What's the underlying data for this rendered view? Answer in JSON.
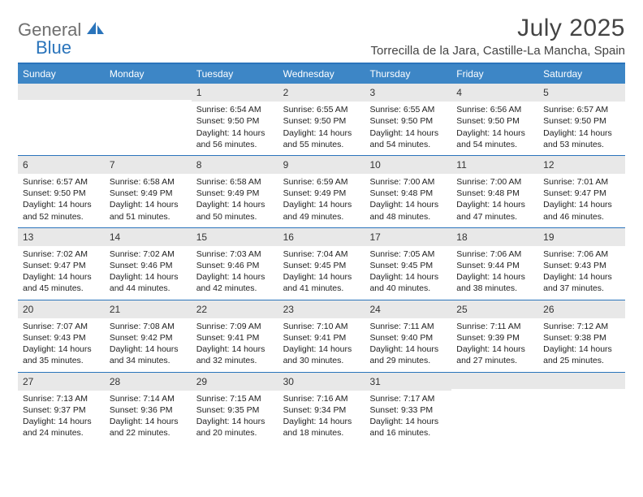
{
  "brand": {
    "part1": "General",
    "part2": "Blue"
  },
  "title": "July 2025",
  "location": "Torrecilla de la Jara, Castille-La Mancha, Spain",
  "colors": {
    "header_bg": "#3d86c6",
    "border": "#2a74bb",
    "daynum_bg": "#e8e8e8",
    "text": "#222222",
    "brand_gray": "#6f6f6f",
    "brand_blue": "#2a74bb"
  },
  "day_names": [
    "Sunday",
    "Monday",
    "Tuesday",
    "Wednesday",
    "Thursday",
    "Friday",
    "Saturday"
  ],
  "weeks": [
    [
      {
        "n": "",
        "sr": "",
        "ss": "",
        "dl": ""
      },
      {
        "n": "",
        "sr": "",
        "ss": "",
        "dl": ""
      },
      {
        "n": "1",
        "sr": "Sunrise: 6:54 AM",
        "ss": "Sunset: 9:50 PM",
        "dl": "Daylight: 14 hours and 56 minutes."
      },
      {
        "n": "2",
        "sr": "Sunrise: 6:55 AM",
        "ss": "Sunset: 9:50 PM",
        "dl": "Daylight: 14 hours and 55 minutes."
      },
      {
        "n": "3",
        "sr": "Sunrise: 6:55 AM",
        "ss": "Sunset: 9:50 PM",
        "dl": "Daylight: 14 hours and 54 minutes."
      },
      {
        "n": "4",
        "sr": "Sunrise: 6:56 AM",
        "ss": "Sunset: 9:50 PM",
        "dl": "Daylight: 14 hours and 54 minutes."
      },
      {
        "n": "5",
        "sr": "Sunrise: 6:57 AM",
        "ss": "Sunset: 9:50 PM",
        "dl": "Daylight: 14 hours and 53 minutes."
      }
    ],
    [
      {
        "n": "6",
        "sr": "Sunrise: 6:57 AM",
        "ss": "Sunset: 9:50 PM",
        "dl": "Daylight: 14 hours and 52 minutes."
      },
      {
        "n": "7",
        "sr": "Sunrise: 6:58 AM",
        "ss": "Sunset: 9:49 PM",
        "dl": "Daylight: 14 hours and 51 minutes."
      },
      {
        "n": "8",
        "sr": "Sunrise: 6:58 AM",
        "ss": "Sunset: 9:49 PM",
        "dl": "Daylight: 14 hours and 50 minutes."
      },
      {
        "n": "9",
        "sr": "Sunrise: 6:59 AM",
        "ss": "Sunset: 9:49 PM",
        "dl": "Daylight: 14 hours and 49 minutes."
      },
      {
        "n": "10",
        "sr": "Sunrise: 7:00 AM",
        "ss": "Sunset: 9:48 PM",
        "dl": "Daylight: 14 hours and 48 minutes."
      },
      {
        "n": "11",
        "sr": "Sunrise: 7:00 AM",
        "ss": "Sunset: 9:48 PM",
        "dl": "Daylight: 14 hours and 47 minutes."
      },
      {
        "n": "12",
        "sr": "Sunrise: 7:01 AM",
        "ss": "Sunset: 9:47 PM",
        "dl": "Daylight: 14 hours and 46 minutes."
      }
    ],
    [
      {
        "n": "13",
        "sr": "Sunrise: 7:02 AM",
        "ss": "Sunset: 9:47 PM",
        "dl": "Daylight: 14 hours and 45 minutes."
      },
      {
        "n": "14",
        "sr": "Sunrise: 7:02 AM",
        "ss": "Sunset: 9:46 PM",
        "dl": "Daylight: 14 hours and 44 minutes."
      },
      {
        "n": "15",
        "sr": "Sunrise: 7:03 AM",
        "ss": "Sunset: 9:46 PM",
        "dl": "Daylight: 14 hours and 42 minutes."
      },
      {
        "n": "16",
        "sr": "Sunrise: 7:04 AM",
        "ss": "Sunset: 9:45 PM",
        "dl": "Daylight: 14 hours and 41 minutes."
      },
      {
        "n": "17",
        "sr": "Sunrise: 7:05 AM",
        "ss": "Sunset: 9:45 PM",
        "dl": "Daylight: 14 hours and 40 minutes."
      },
      {
        "n": "18",
        "sr": "Sunrise: 7:06 AM",
        "ss": "Sunset: 9:44 PM",
        "dl": "Daylight: 14 hours and 38 minutes."
      },
      {
        "n": "19",
        "sr": "Sunrise: 7:06 AM",
        "ss": "Sunset: 9:43 PM",
        "dl": "Daylight: 14 hours and 37 minutes."
      }
    ],
    [
      {
        "n": "20",
        "sr": "Sunrise: 7:07 AM",
        "ss": "Sunset: 9:43 PM",
        "dl": "Daylight: 14 hours and 35 minutes."
      },
      {
        "n": "21",
        "sr": "Sunrise: 7:08 AM",
        "ss": "Sunset: 9:42 PM",
        "dl": "Daylight: 14 hours and 34 minutes."
      },
      {
        "n": "22",
        "sr": "Sunrise: 7:09 AM",
        "ss": "Sunset: 9:41 PM",
        "dl": "Daylight: 14 hours and 32 minutes."
      },
      {
        "n": "23",
        "sr": "Sunrise: 7:10 AM",
        "ss": "Sunset: 9:41 PM",
        "dl": "Daylight: 14 hours and 30 minutes."
      },
      {
        "n": "24",
        "sr": "Sunrise: 7:11 AM",
        "ss": "Sunset: 9:40 PM",
        "dl": "Daylight: 14 hours and 29 minutes."
      },
      {
        "n": "25",
        "sr": "Sunrise: 7:11 AM",
        "ss": "Sunset: 9:39 PM",
        "dl": "Daylight: 14 hours and 27 minutes."
      },
      {
        "n": "26",
        "sr": "Sunrise: 7:12 AM",
        "ss": "Sunset: 9:38 PM",
        "dl": "Daylight: 14 hours and 25 minutes."
      }
    ],
    [
      {
        "n": "27",
        "sr": "Sunrise: 7:13 AM",
        "ss": "Sunset: 9:37 PM",
        "dl": "Daylight: 14 hours and 24 minutes."
      },
      {
        "n": "28",
        "sr": "Sunrise: 7:14 AM",
        "ss": "Sunset: 9:36 PM",
        "dl": "Daylight: 14 hours and 22 minutes."
      },
      {
        "n": "29",
        "sr": "Sunrise: 7:15 AM",
        "ss": "Sunset: 9:35 PM",
        "dl": "Daylight: 14 hours and 20 minutes."
      },
      {
        "n": "30",
        "sr": "Sunrise: 7:16 AM",
        "ss": "Sunset: 9:34 PM",
        "dl": "Daylight: 14 hours and 18 minutes."
      },
      {
        "n": "31",
        "sr": "Sunrise: 7:17 AM",
        "ss": "Sunset: 9:33 PM",
        "dl": "Daylight: 14 hours and 16 minutes."
      },
      {
        "n": "",
        "sr": "",
        "ss": "",
        "dl": ""
      },
      {
        "n": "",
        "sr": "",
        "ss": "",
        "dl": ""
      }
    ]
  ]
}
